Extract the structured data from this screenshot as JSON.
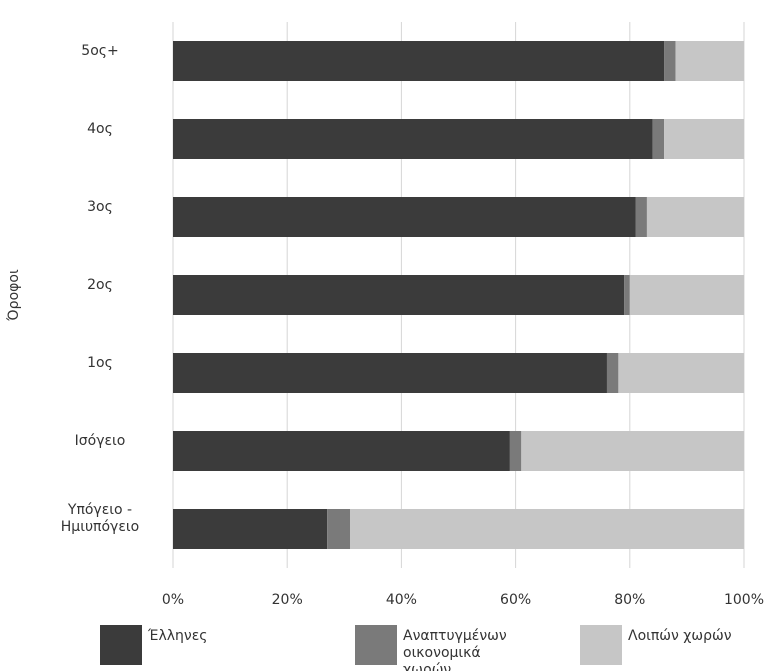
{
  "chart_data": {
    "type": "stacked-barh",
    "y_label": "Όροφοι",
    "categories": [
      "5ος+",
      "4ος",
      "3ος",
      "2ος",
      "1ος",
      "Ισόγειο",
      "Υπόγειο - Ημιυπόγειο"
    ],
    "series": [
      {
        "name": "Έλληνες",
        "color": "#3b3b3b",
        "values": [
          86,
          84,
          81,
          79,
          76,
          59,
          27
        ]
      },
      {
        "name": "Αναπτυγμένων οικονομικά χωρών",
        "color": "#7a7a7a",
        "values": [
          2,
          2,
          2,
          1,
          2,
          2,
          4
        ]
      },
      {
        "name": "Λοιπών χωρών",
        "color": "#c6c6c6",
        "values": [
          12,
          14,
          17,
          20,
          22,
          39,
          69
        ]
      }
    ],
    "xlim": [
      0,
      100
    ],
    "xticks": [
      {
        "value": 0,
        "label": "0%"
      },
      {
        "value": 20,
        "label": "20%"
      },
      {
        "value": 40,
        "label": "40%"
      },
      {
        "value": 60,
        "label": "60%"
      },
      {
        "value": 80,
        "label": "80%"
      },
      {
        "value": 100,
        "label": "100%"
      }
    ],
    "grid": true
  }
}
